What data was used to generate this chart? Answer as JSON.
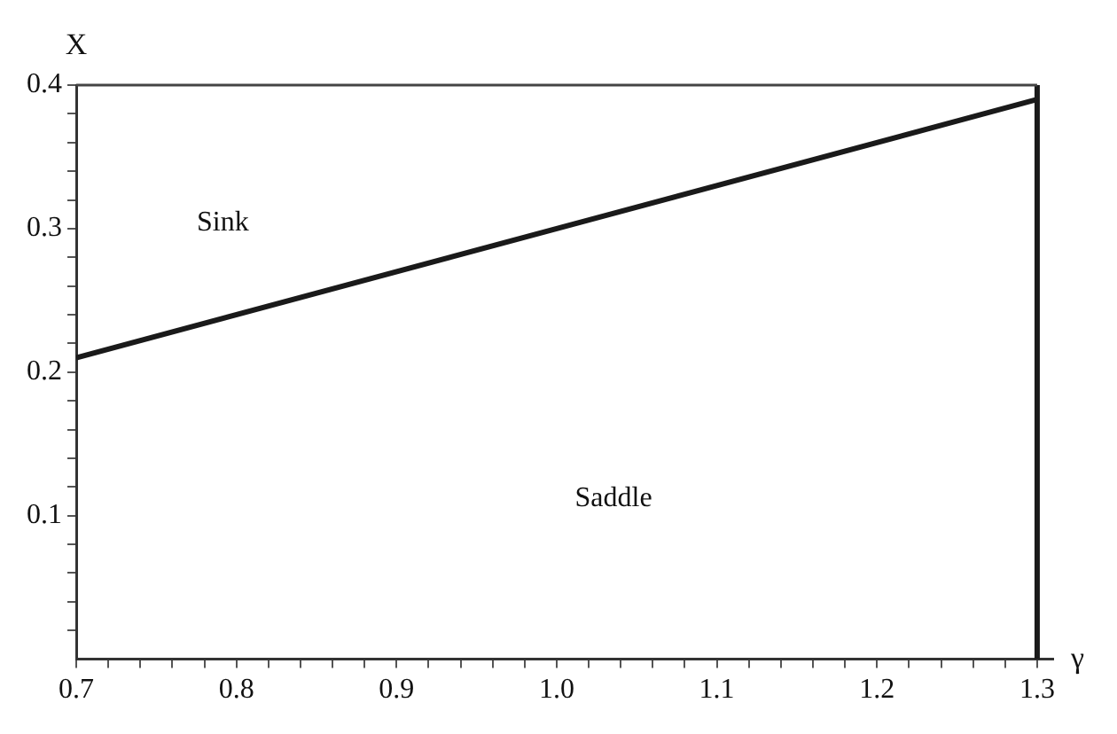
{
  "chart_data": {
    "type": "line",
    "xlabel": "γ",
    "ylabel": "X",
    "x": [
      0.7,
      1.3
    ],
    "series": [
      {
        "color": "#1a1a1a",
        "values": [
          0.21,
          0.39
        ]
      }
    ],
    "xlim": [
      0.7,
      1.31
    ],
    "ylim": [
      0,
      0.4
    ],
    "xticks": [
      0.7,
      {
        "value": 0.72,
        "label": null
      },
      {
        "value": 0.74,
        "label": null
      },
      {
        "value": 0.76,
        "label": null
      },
      {
        "value": 0.78,
        "label": null
      },
      0.8,
      {
        "value": 0.82,
        "label": null
      },
      {
        "value": 0.84,
        "label": null
      },
      {
        "value": 0.86,
        "label": null
      },
      {
        "value": 0.88,
        "label": null
      },
      0.9,
      {
        "value": 0.92,
        "label": null
      },
      {
        "value": 0.94,
        "label": null
      },
      {
        "value": 0.96,
        "label": null
      },
      {
        "value": 0.98,
        "label": null
      },
      {
        "value": 1.0,
        "label": "1.0"
      },
      {
        "value": 1.02,
        "label": null
      },
      {
        "value": 1.04,
        "label": null
      },
      {
        "value": 1.06,
        "label": null
      },
      {
        "value": 1.08,
        "label": null
      },
      1.1,
      {
        "value": 1.12,
        "label": null
      },
      {
        "value": 1.14,
        "label": null
      },
      {
        "value": 1.16,
        "label": null
      },
      {
        "value": 1.18,
        "label": null
      },
      1.2,
      {
        "value": 1.22,
        "label": null
      },
      {
        "value": 1.24,
        "label": null
      },
      {
        "value": 1.26,
        "label": null
      },
      {
        "value": 1.28,
        "label": null
      },
      1.3
    ],
    "yticks": [
      {
        "value": 0.02,
        "label": null
      },
      {
        "value": 0.04,
        "label": null
      },
      {
        "value": 0.06,
        "label": null
      },
      {
        "value": 0.08,
        "label": null
      },
      0.1,
      {
        "value": 0.12,
        "label": null
      },
      {
        "value": 0.14,
        "label": null
      },
      {
        "value": 0.16,
        "label": null
      },
      {
        "value": 0.18,
        "label": null
      },
      0.2,
      {
        "value": 0.22,
        "label": null
      },
      {
        "value": 0.24,
        "label": null
      },
      {
        "value": 0.26,
        "label": null
      },
      {
        "value": 0.28,
        "label": null
      },
      0.3,
      {
        "value": 0.32,
        "label": null
      },
      {
        "value": 0.34,
        "label": null
      },
      {
        "value": 0.36,
        "label": null
      },
      {
        "value": 0.38,
        "label": null
      },
      0.4
    ],
    "ref_lines": [
      {
        "axis": "x",
        "value": 1.3,
        "color": "#1a1a1a"
      },
      {
        "axis": "y",
        "value": 0.4,
        "color": "#444444"
      }
    ],
    "annotations": [
      "Sink",
      "Saddle"
    ],
    "grid": false,
    "legend": false,
    "marker": "none",
    "line_style": "solid"
  }
}
